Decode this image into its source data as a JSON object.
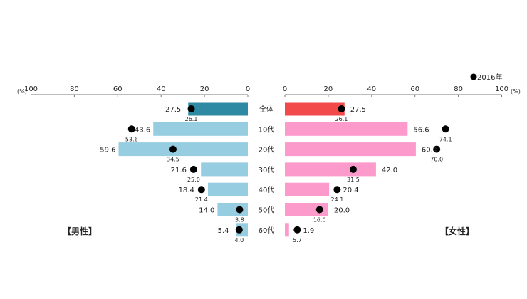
{
  "chart_data": {
    "type": "bar",
    "orientation": "horizontal-butterfly",
    "categories": [
      "全体",
      "10代",
      "20代",
      "30代",
      "40代",
      "50代",
      "60代"
    ],
    "unit_label": "(%)",
    "xlim": [
      0,
      100
    ],
    "ticks": [
      0,
      20,
      40,
      60,
      80,
      100
    ],
    "legend": {
      "label": "●2016年",
      "marker_label": "2016年",
      "placement": "top-right"
    },
    "series": [
      {
        "name": "男性",
        "label": "【男性】",
        "side": "left",
        "values": [
          27.5,
          43.6,
          59.6,
          21.6,
          18.4,
          14.0,
          5.4
        ],
        "values_2016": [
          26.1,
          53.6,
          34.5,
          25.0,
          21.4,
          3.8,
          4.0
        ],
        "color_total": "#2e8aa3",
        "color": "#96cde0"
      },
      {
        "name": "女性",
        "label": "【女性】",
        "side": "right",
        "values": [
          27.5,
          56.6,
          60.4,
          42.0,
          20.4,
          20.0,
          1.9
        ],
        "values_2016": [
          26.1,
          74.1,
          70.0,
          31.5,
          24.1,
          16.0,
          5.7
        ],
        "color_total": "#f24a4a",
        "color": "#fb9acb"
      }
    ]
  }
}
